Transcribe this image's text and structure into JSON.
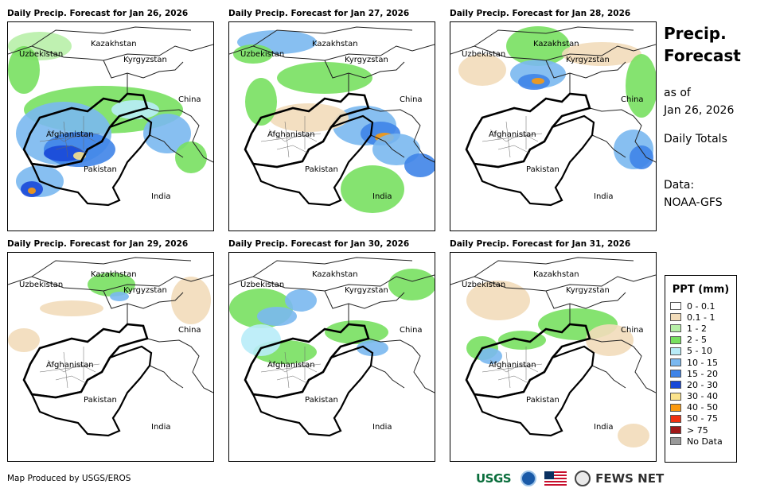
{
  "panels": [
    {
      "title": "Daily Precip. Forecast for Jan 26, 2026"
    },
    {
      "title": "Daily Precip. Forecast for Jan 27, 2026"
    },
    {
      "title": "Daily Precip. Forecast for Jan 28, 2026"
    },
    {
      "title": "Daily Precip. Forecast for Jan 29, 2026"
    },
    {
      "title": "Daily Precip. Forecast for Jan 30, 2026"
    },
    {
      "title": "Daily Precip. Forecast for Jan 31, 2026"
    }
  ],
  "map_labels": {
    "kazakhstan": "Kazakhstan",
    "uzbekistan": "Uzbekistan",
    "kyrgyzstan": "Kyrgyzstan",
    "china": "China",
    "afghanistan": "Afghanistan",
    "pakistan": "Pakistan",
    "india": "India"
  },
  "side": {
    "title_line1": "Precip.",
    "title_line2": "Forecast",
    "asof_line1": "as of",
    "asof_line2": "Jan 26, 2026",
    "totals": "Daily Totals",
    "data_line1": "Data:",
    "data_line2": "NOAA-GFS"
  },
  "legend": {
    "title": "PPT (mm)",
    "items": [
      {
        "label": "0 - 0.1",
        "color": "#ffffff"
      },
      {
        "label": "0.1 - 1",
        "color": "#f2dcba"
      },
      {
        "label": "1 - 2",
        "color": "#b8f0a8"
      },
      {
        "label": "2 - 5",
        "color": "#78e060"
      },
      {
        "label": "5 - 10",
        "color": "#b8ecf8"
      },
      {
        "label": "10 - 15",
        "color": "#7ab8f0"
      },
      {
        "label": "15 - 20",
        "color": "#3f84e8"
      },
      {
        "label": "20 - 30",
        "color": "#1848d8"
      },
      {
        "label": "30 - 40",
        "color": "#fbe38c"
      },
      {
        "label": "40 - 50",
        "color": "#fa9a10"
      },
      {
        "label": "50 - 75",
        "color": "#f03010"
      },
      {
        "label": "> 75",
        "color": "#a01818"
      },
      {
        "label": "No Data",
        "color": "#999999"
      }
    ]
  },
  "footer": {
    "credit": "Map Produced by USGS/EROS",
    "usgs_logo": "USGS",
    "fews_logo": "FEWS NET"
  }
}
